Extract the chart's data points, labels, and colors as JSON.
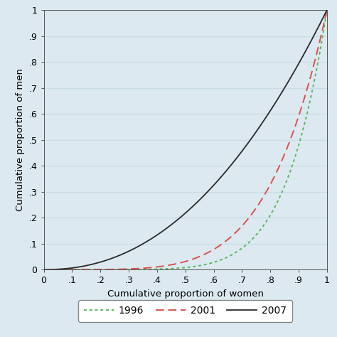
{
  "title": "",
  "xlabel": "Cumulative proportion of women",
  "ylabel": "Cumulative proportion of men",
  "xlim": [
    0,
    1
  ],
  "ylim": [
    0,
    1
  ],
  "xticks": [
    0,
    0.1,
    0.2,
    0.3,
    0.4,
    0.5,
    0.6,
    0.7,
    0.8,
    0.9,
    1.0
  ],
  "yticks": [
    0,
    0.1,
    0.2,
    0.3,
    0.4,
    0.5,
    0.6,
    0.7,
    0.8,
    0.9,
    1.0
  ],
  "xticklabels": [
    "0",
    ".1",
    ".2",
    ".3",
    ".4",
    ".5",
    ".6",
    ".7",
    ".8",
    ".9",
    "1"
  ],
  "yticklabels": [
    "0",
    ".1",
    ".2",
    ".3",
    ".4",
    ".5",
    ".6",
    ".7",
    ".8",
    ".9",
    "1"
  ],
  "background_color": "#dce9f0",
  "plot_background": "#dce9f0",
  "curve_1996_color": "#5cb85c",
  "curve_2001_color": "#d9534f",
  "curve_2007_color": "#2a2a2a",
  "legend_labels": [
    "1996",
    "2001",
    "2007"
  ],
  "grid_color": "#c8dce8",
  "grid_linewidth": 0.9,
  "k_1996": 7.0,
  "k_2001": 5.0,
  "k_2007": 2.2
}
